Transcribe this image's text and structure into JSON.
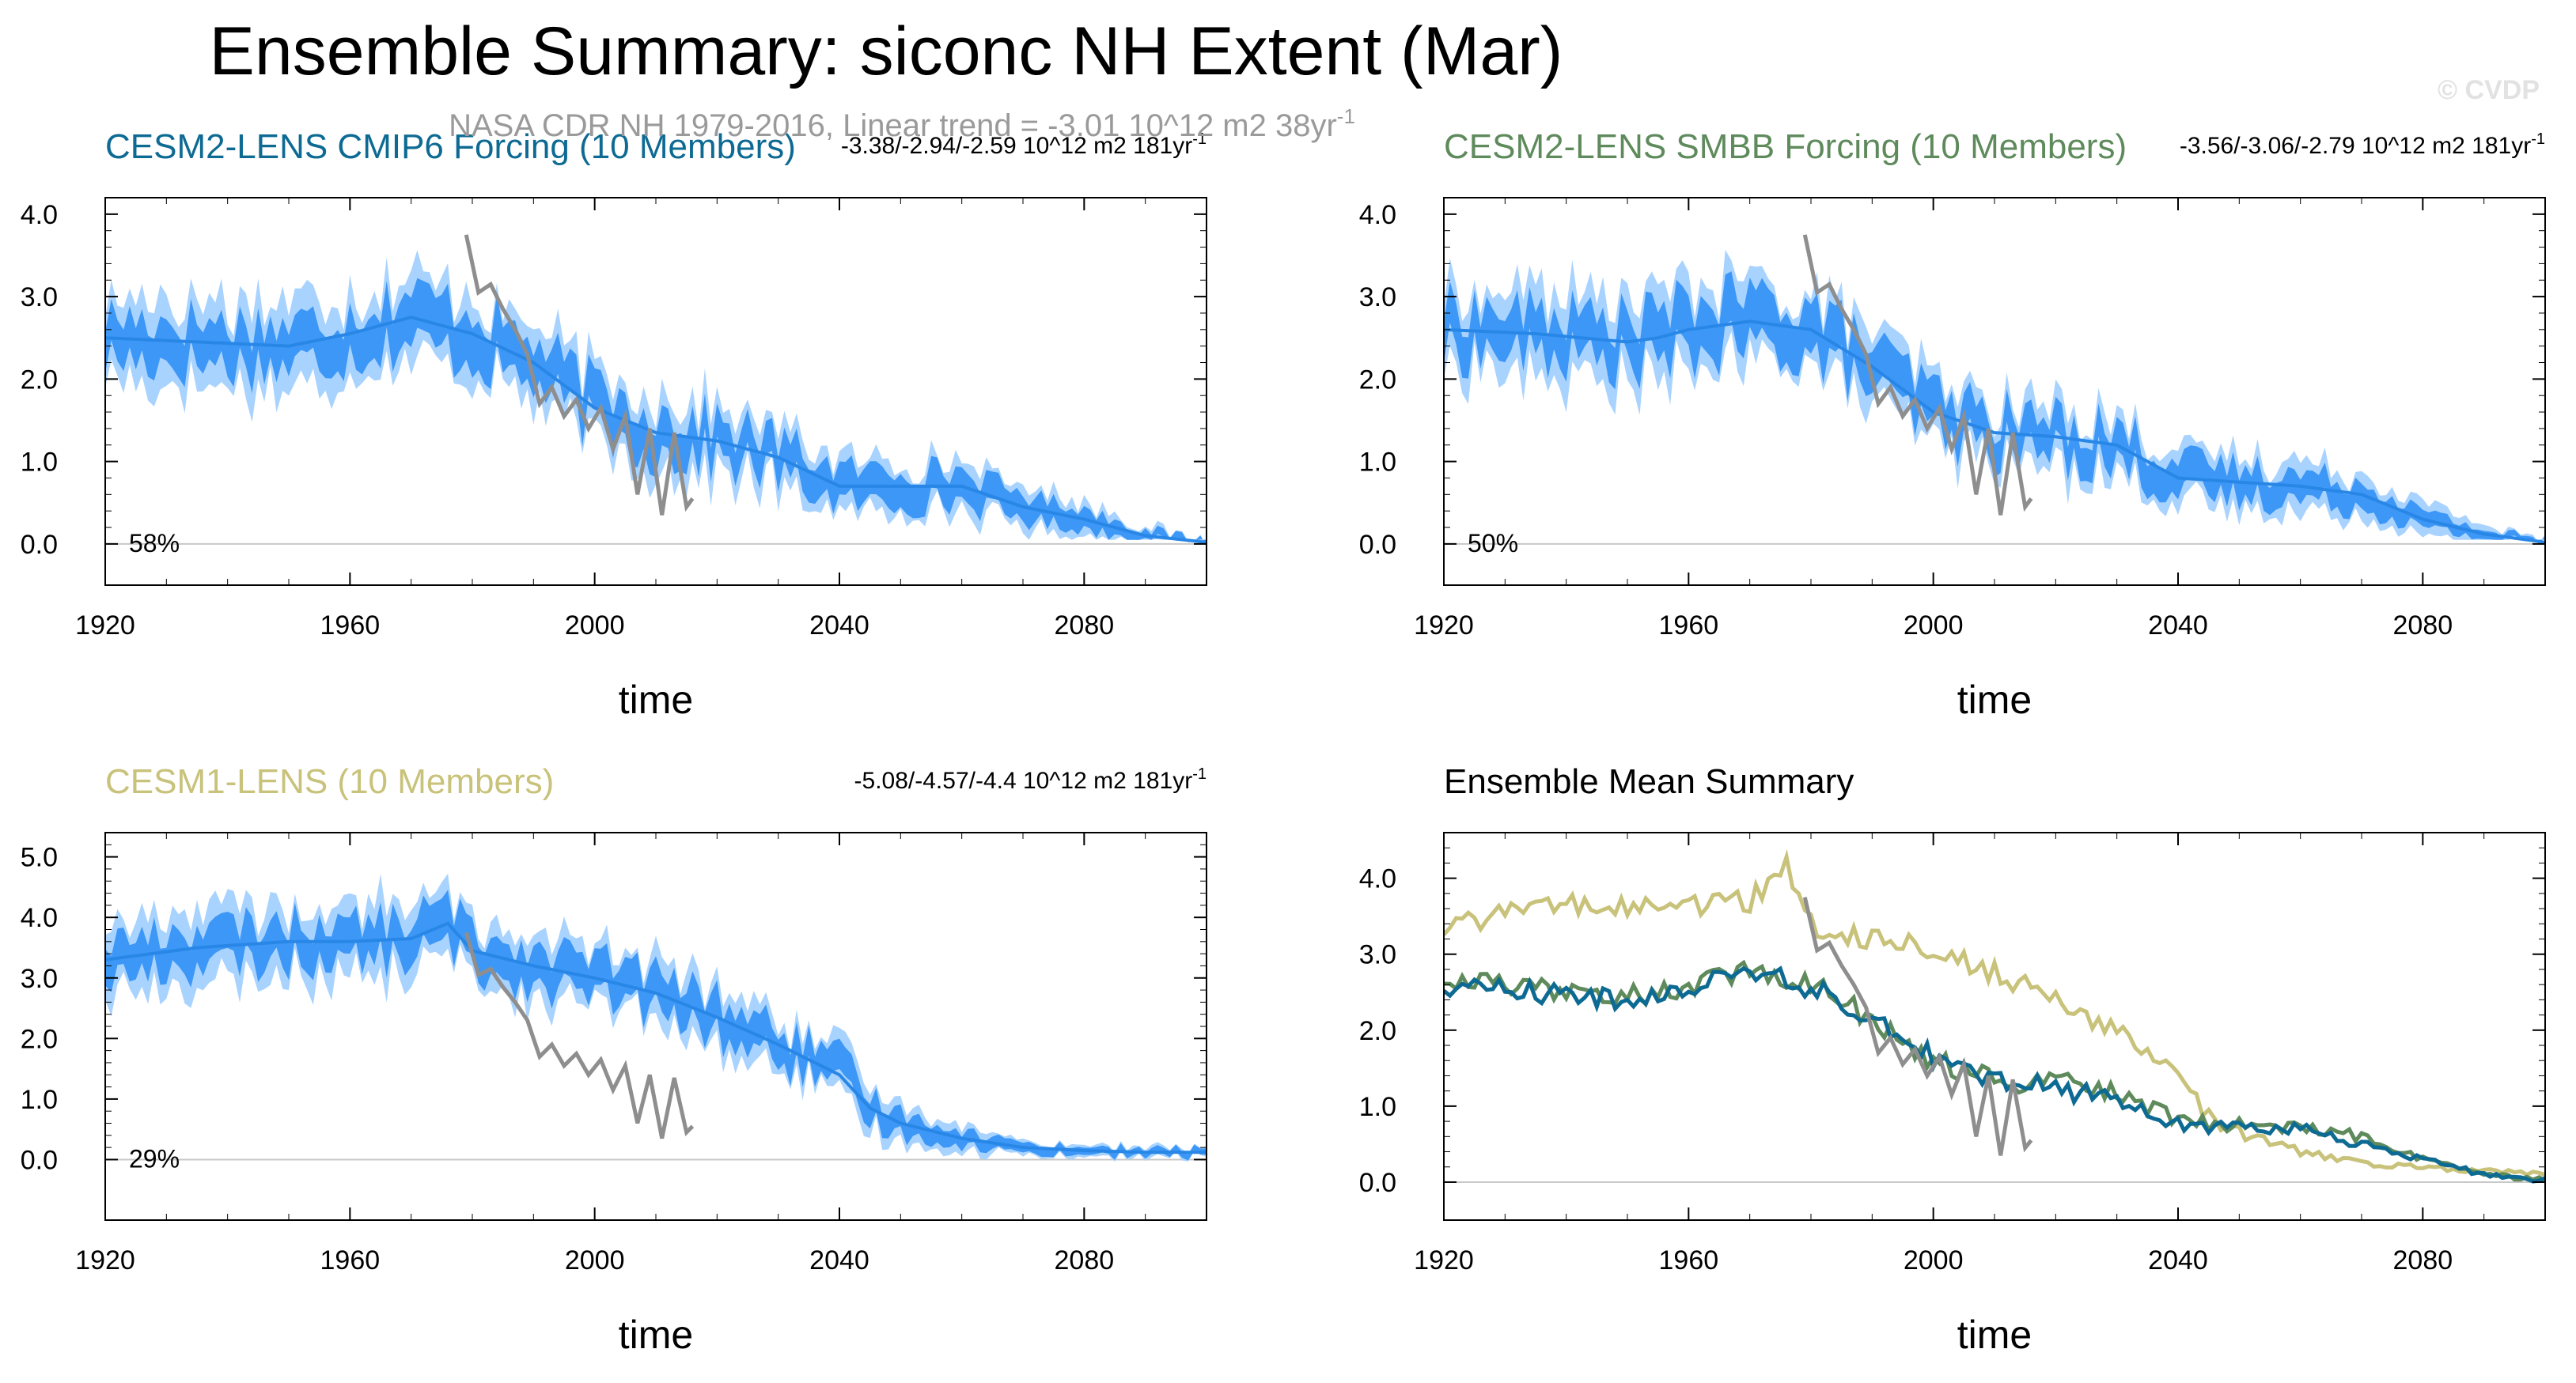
{
  "figure": {
    "title": "Ensemble Summary: siconc NH Extent (Mar)",
    "obs_caption": "NASA CDR NH 1979-2016, Linear trend = -3.01 10^12 m2 38yr",
    "obs_caption_sup": "-1",
    "watermark": "© CVDP"
  },
  "colors": {
    "band_outer": "#a9d3ff",
    "band_inner": "#3d97f6",
    "ens_mean": "#2887e6",
    "obs": "#8e8e8e",
    "cesm2_cmip6": "#0d6a93",
    "cesm2_smbb": "#5e8a5c",
    "cesm1": "#c8c27a"
  },
  "chart_data": [
    {
      "id": "cesm2-cmip6",
      "type": "area",
      "title": "CESM2-LENS CMIP6 Forcing (10 Members)",
      "title_color": "#0d6a93",
      "trend_text": "-3.38/-2.94/-2.59 10^12 m2 181yr",
      "trend_sup": "-1",
      "percent": "58%",
      "xlabel": "time",
      "xlim": [
        1920,
        2100
      ],
      "ylim": [
        -0.5,
        4.2
      ],
      "yticks": [
        0.0,
        1.0,
        2.0,
        3.0,
        4.0
      ],
      "ytick_labels": [
        "0.0",
        "1.0",
        "2.0",
        "3.0",
        "4.0"
      ],
      "xticks": [
        1920,
        1960,
        2000,
        2040,
        2080
      ],
      "xtick_labels": [
        "1920",
        "1960",
        "2000",
        "2040",
        "2080"
      ],
      "ensemble": {
        "x": [
          1920,
          1935,
          1950,
          1960,
          1970,
          1980,
          1990,
          2000,
          2010,
          2020,
          2030,
          2040,
          2050,
          2060,
          2070,
          2080,
          2090,
          2100
        ],
        "mean": [
          2.5,
          2.45,
          2.4,
          2.55,
          2.75,
          2.55,
          2.2,
          1.65,
          1.35,
          1.25,
          1.05,
          0.7,
          0.7,
          0.7,
          0.45,
          0.3,
          0.1,
          0.02
        ],
        "inner_half": [
          0.25,
          0.25,
          0.25,
          0.25,
          0.3,
          0.3,
          0.25,
          0.25,
          0.25,
          0.2,
          0.2,
          0.2,
          0.2,
          0.18,
          0.15,
          0.12,
          0.06,
          0.02
        ],
        "outer_half": [
          0.5,
          0.5,
          0.5,
          0.5,
          0.55,
          0.5,
          0.45,
          0.45,
          0.45,
          0.4,
          0.35,
          0.35,
          0.3,
          0.3,
          0.25,
          0.2,
          0.1,
          0.03
        ]
      },
      "obs": {
        "x": [
          1979,
          1981,
          1983,
          1985,
          1987,
          1989,
          1991,
          1993,
          1995,
          1997,
          1999,
          2001,
          2003,
          2005,
          2007,
          2009,
          2011,
          2013,
          2015,
          2016
        ],
        "y": [
          3.75,
          3.05,
          3.15,
          2.85,
          2.6,
          2.3,
          1.7,
          1.9,
          1.55,
          1.75,
          1.4,
          1.65,
          1.15,
          1.55,
          0.6,
          1.4,
          0.35,
          1.35,
          0.45,
          0.55
        ]
      }
    },
    {
      "id": "cesm2-smbb",
      "type": "area",
      "title": "CESM2-LENS SMBB Forcing (10 Members)",
      "title_color": "#5e8a5c",
      "trend_text": "-3.56/-3.06/-2.79 10^12 m2 181yr",
      "trend_sup": "-1",
      "percent": "50%",
      "xlabel": "time",
      "xlim": [
        1920,
        2100
      ],
      "ylim": [
        -0.5,
        4.2
      ],
      "yticks": [
        0.0,
        1.0,
        2.0,
        3.0,
        4.0
      ],
      "ytick_labels": [
        "0.0",
        "1.0",
        "2.0",
        "3.0",
        "4.0"
      ],
      "xticks": [
        1920,
        1960,
        2000,
        2040,
        2080
      ],
      "xtick_labels": [
        "1920",
        "1960",
        "2000",
        "2040",
        "2080"
      ],
      "ensemble": {
        "x": [
          1920,
          1935,
          1950,
          1955,
          1960,
          1970,
          1980,
          1990,
          2000,
          2010,
          2020,
          2030,
          2040,
          2050,
          2060,
          2070,
          2080,
          2090,
          2100
        ],
        "mean": [
          2.6,
          2.55,
          2.45,
          2.5,
          2.6,
          2.7,
          2.6,
          2.15,
          1.6,
          1.35,
          1.3,
          1.2,
          0.8,
          0.75,
          0.7,
          0.6,
          0.3,
          0.12,
          0.02
        ],
        "inner_half": [
          0.25,
          0.25,
          0.25,
          0.3,
          0.3,
          0.3,
          0.3,
          0.25,
          0.25,
          0.2,
          0.2,
          0.2,
          0.2,
          0.18,
          0.15,
          0.15,
          0.1,
          0.05,
          0.02
        ],
        "outer_half": [
          0.5,
          0.5,
          0.5,
          0.5,
          0.5,
          0.55,
          0.5,
          0.45,
          0.45,
          0.4,
          0.4,
          0.35,
          0.3,
          0.3,
          0.3,
          0.25,
          0.2,
          0.1,
          0.03
        ]
      },
      "obs": {
        "x": [
          1979,
          1981,
          1983,
          1985,
          1987,
          1989,
          1991,
          1993,
          1995,
          1997,
          1999,
          2001,
          2003,
          2005,
          2007,
          2009,
          2011,
          2013,
          2015,
          2016
        ],
        "y": [
          3.75,
          3.05,
          3.15,
          2.85,
          2.6,
          2.3,
          1.7,
          1.9,
          1.55,
          1.75,
          1.4,
          1.65,
          1.15,
          1.55,
          0.6,
          1.4,
          0.35,
          1.35,
          0.45,
          0.55
        ]
      }
    },
    {
      "id": "cesm1",
      "type": "area",
      "title": "CESM1-LENS (10 Members)",
      "title_color": "#c8c27a",
      "trend_text": "-5.08/-4.57/-4.4 10^12 m2 181yr",
      "trend_sup": "-1",
      "percent": "29%",
      "xlabel": "time",
      "xlim": [
        1920,
        2100
      ],
      "ylim": [
        -1.0,
        5.4
      ],
      "yticks": [
        0.0,
        1.0,
        2.0,
        3.0,
        4.0,
        5.0
      ],
      "ytick_labels": [
        "0.0",
        "1.0",
        "2.0",
        "3.0",
        "4.0",
        "5.0"
      ],
      "xticks": [
        1920,
        1960,
        2000,
        2040,
        2080
      ],
      "xtick_labels": [
        "1920",
        "1960",
        "2000",
        "2040",
        "2080"
      ],
      "ensemble": {
        "x": [
          1920,
          1935,
          1950,
          1960,
          1970,
          1976,
          1980,
          1990,
          2000,
          2010,
          2020,
          2030,
          2040,
          2045,
          2050,
          2060,
          2070,
          2080,
          2090,
          2100
        ],
        "mean": [
          3.3,
          3.5,
          3.6,
          3.6,
          3.65,
          3.9,
          3.45,
          3.2,
          3.0,
          2.75,
          2.35,
          1.9,
          1.4,
          0.85,
          0.6,
          0.35,
          0.2,
          0.15,
          0.12,
          0.12
        ],
        "inner_half": [
          0.3,
          0.3,
          0.3,
          0.3,
          0.3,
          0.35,
          0.3,
          0.3,
          0.3,
          0.3,
          0.3,
          0.25,
          0.25,
          0.2,
          0.18,
          0.12,
          0.08,
          0.06,
          0.05,
          0.05
        ],
        "outer_half": [
          0.6,
          0.6,
          0.6,
          0.6,
          0.6,
          0.6,
          0.55,
          0.55,
          0.5,
          0.5,
          0.5,
          0.45,
          0.4,
          0.35,
          0.3,
          0.2,
          0.12,
          0.1,
          0.08,
          0.08
        ]
      },
      "obs": {
        "x": [
          1979,
          1981,
          1983,
          1985,
          1987,
          1989,
          1991,
          1993,
          1995,
          1997,
          1999,
          2001,
          2003,
          2005,
          2007,
          2009,
          2011,
          2013,
          2015,
          2016
        ],
        "y": [
          3.75,
          3.05,
          3.15,
          2.85,
          2.6,
          2.3,
          1.7,
          1.9,
          1.55,
          1.75,
          1.4,
          1.65,
          1.15,
          1.55,
          0.6,
          1.4,
          0.35,
          1.35,
          0.45,
          0.55
        ]
      }
    },
    {
      "id": "mean-summary",
      "type": "line",
      "title": "Ensemble Mean Summary",
      "title_color": "#000000",
      "xlabel": "time",
      "xlim": [
        1920,
        2100
      ],
      "ylim": [
        -0.5,
        4.6
      ],
      "yticks": [
        0.0,
        1.0,
        2.0,
        3.0,
        4.0
      ],
      "ytick_labels": [
        "0.0",
        "1.0",
        "2.0",
        "3.0",
        "4.0"
      ],
      "xticks": [
        1920,
        1960,
        2000,
        2040,
        2080
      ],
      "xtick_labels": [
        "1920",
        "1960",
        "2000",
        "2040",
        "2080"
      ],
      "series": [
        {
          "name": "CESM1-LENS",
          "color": "#c8c27a",
          "x": [
            1920,
            1930,
            1940,
            1950,
            1960,
            1970,
            1976,
            1978,
            1980,
            1990,
            2000,
            2010,
            2020,
            2030,
            2040,
            2045,
            2050,
            2060,
            2070,
            2080,
            2090,
            2100
          ],
          "y": [
            3.3,
            3.55,
            3.65,
            3.6,
            3.65,
            3.7,
            4.15,
            3.65,
            3.4,
            3.2,
            3.05,
            2.75,
            2.4,
            1.95,
            1.4,
            0.85,
            0.65,
            0.4,
            0.25,
            0.2,
            0.15,
            0.12
          ]
        },
        {
          "name": "CESM2-LENS SMBB",
          "color": "#5e8a5c",
          "x": [
            1920,
            1935,
            1950,
            1955,
            1960,
            1970,
            1980,
            1990,
            2000,
            2010,
            2020,
            2030,
            2040,
            2050,
            2060,
            2070,
            2080,
            2090,
            2100
          ],
          "y": [
            2.65,
            2.55,
            2.45,
            2.5,
            2.6,
            2.8,
            2.6,
            2.15,
            1.6,
            1.35,
            1.3,
            1.2,
            0.8,
            0.75,
            0.7,
            0.6,
            0.3,
            0.12,
            0.02
          ]
        },
        {
          "name": "CESM2-LENS CMIP6",
          "color": "#0d6a93",
          "x": [
            1920,
            1935,
            1950,
            1960,
            1970,
            1980,
            1990,
            2000,
            2010,
            2020,
            2030,
            2040,
            2050,
            2060,
            2070,
            2080,
            2090,
            2100
          ],
          "y": [
            2.55,
            2.5,
            2.4,
            2.55,
            2.8,
            2.55,
            2.2,
            1.65,
            1.35,
            1.25,
            1.05,
            0.75,
            0.7,
            0.7,
            0.5,
            0.3,
            0.1,
            0.02
          ]
        }
      ],
      "obs": {
        "x": [
          1979,
          1981,
          1983,
          1985,
          1987,
          1989,
          1991,
          1993,
          1995,
          1997,
          1999,
          2001,
          2003,
          2005,
          2007,
          2009,
          2011,
          2013,
          2015,
          2016
        ],
        "y": [
          3.75,
          3.05,
          3.15,
          2.85,
          2.6,
          2.3,
          1.7,
          1.9,
          1.55,
          1.75,
          1.4,
          1.65,
          1.15,
          1.55,
          0.6,
          1.4,
          0.35,
          1.35,
          0.45,
          0.55
        ]
      }
    }
  ]
}
